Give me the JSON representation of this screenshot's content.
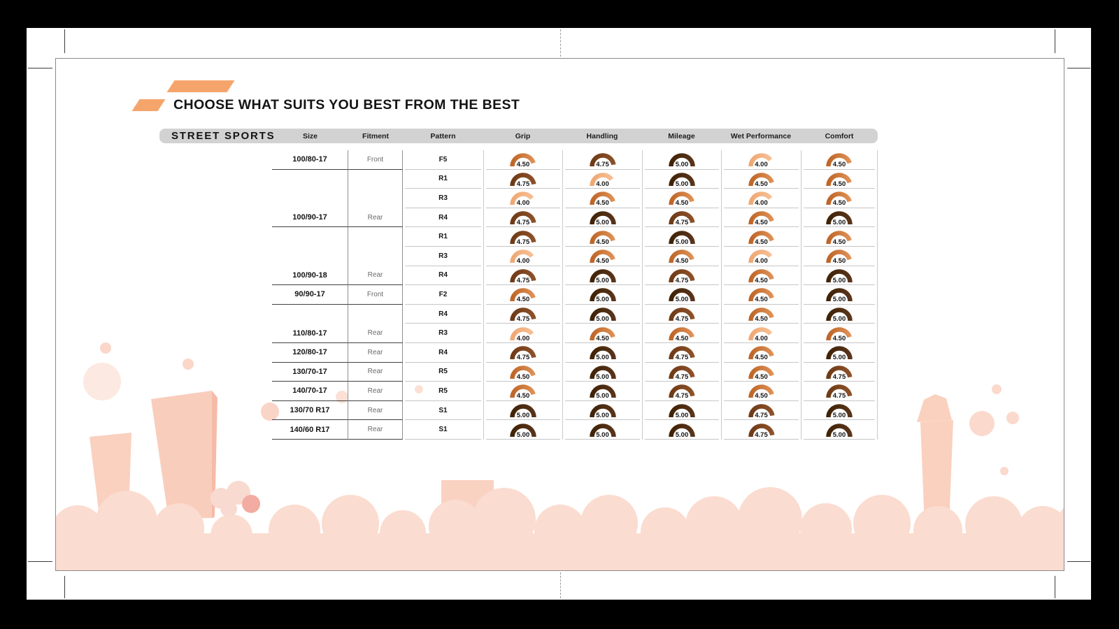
{
  "title": {
    "text": "CHOOSE WHAT SUITS YOU BEST FROM THE BEST",
    "accent_color": "#F5A56C"
  },
  "header": {
    "brand": "STREET SPORTS",
    "columns": [
      "Size",
      "Fitment",
      "Pattern",
      "Grip",
      "Handling",
      "Mileage",
      "Wet Performance",
      "Comfort"
    ]
  },
  "table": {
    "rating_columns": [
      "Grip",
      "Handling",
      "Mileage",
      "Wet Performance",
      "Comfort"
    ],
    "rating_colors": {
      "4.00": [
        "#EFA873",
        "#F6BE93"
      ],
      "4.50": [
        "#BE6628",
        "#DE9055"
      ],
      "4.75": [
        "#6F3A16",
        "#8D5129"
      ],
      "5.00": [
        "#402307",
        "#59341A"
      ]
    },
    "rows": [
      {
        "size": "100/80-17",
        "fitment": "Front",
        "pattern": "F5",
        "ratings": [
          "4.50",
          "4.75",
          "5.00",
          "4.00",
          "4.50"
        ],
        "group_end": true
      },
      {
        "size": "",
        "fitment": "",
        "pattern": "R1",
        "ratings": [
          "4.75",
          "4.00",
          "5.00",
          "4.50",
          "4.50"
        ],
        "group_end": false
      },
      {
        "size": "",
        "fitment": "",
        "pattern": "R3",
        "ratings": [
          "4.00",
          "4.50",
          "4.50",
          "4.00",
          "4.50"
        ],
        "group_end": false
      },
      {
        "size": "100/90-17",
        "fitment": "Rear",
        "pattern": "R4",
        "ratings": [
          "4.75",
          "5.00",
          "4.75",
          "4.50",
          "5.00"
        ],
        "group_end": true
      },
      {
        "size": "",
        "fitment": "",
        "pattern": "R1",
        "ratings": [
          "4.75",
          "4.50",
          "5.00",
          "4.50",
          "4.50"
        ],
        "group_end": false
      },
      {
        "size": "",
        "fitment": "",
        "pattern": "R3",
        "ratings": [
          "4.00",
          "4.50",
          "4.50",
          "4.00",
          "4.50"
        ],
        "group_end": false
      },
      {
        "size": "100/90-18",
        "fitment": "Rear",
        "pattern": "R4",
        "ratings": [
          "4.75",
          "5.00",
          "4.75",
          "4.50",
          "5.00"
        ],
        "group_end": true
      },
      {
        "size": "90/90-17",
        "fitment": "Front",
        "pattern": "F2",
        "ratings": [
          "4.50",
          "5.00",
          "5.00",
          "4.50",
          "5.00"
        ],
        "group_end": true
      },
      {
        "size": "",
        "fitment": "",
        "pattern": "R4",
        "ratings": [
          "4.75",
          "5.00",
          "4.75",
          "4.50",
          "5.00"
        ],
        "group_end": false
      },
      {
        "size": "110/80-17",
        "fitment": "Rear",
        "pattern": "R3",
        "ratings": [
          "4.00",
          "4.50",
          "4.50",
          "4.00",
          "4.50"
        ],
        "group_end": true
      },
      {
        "size": "120/80-17",
        "fitment": "Rear",
        "pattern": "R4",
        "ratings": [
          "4.75",
          "5.00",
          "4.75",
          "4.50",
          "5.00"
        ],
        "group_end": true
      },
      {
        "size": "130/70-17",
        "fitment": "Rear",
        "pattern": "R5",
        "ratings": [
          "4.50",
          "5.00",
          "4.75",
          "4.50",
          "4.75"
        ],
        "group_end": true
      },
      {
        "size": "140/70-17",
        "fitment": "Rear",
        "pattern": "R5",
        "ratings": [
          "4.50",
          "5.00",
          "4.75",
          "4.50",
          "4.75"
        ],
        "group_end": true
      },
      {
        "size": "130/70 R17",
        "fitment": "Rear",
        "pattern": "S1",
        "ratings": [
          "5.00",
          "5.00",
          "5.00",
          "4.75",
          "5.00"
        ],
        "group_end": true
      },
      {
        "size": "140/60 R17",
        "fitment": "Rear",
        "pattern": "S1",
        "ratings": [
          "5.00",
          "5.00",
          "5.00",
          "4.75",
          "5.00"
        ],
        "group_end": true
      }
    ]
  }
}
